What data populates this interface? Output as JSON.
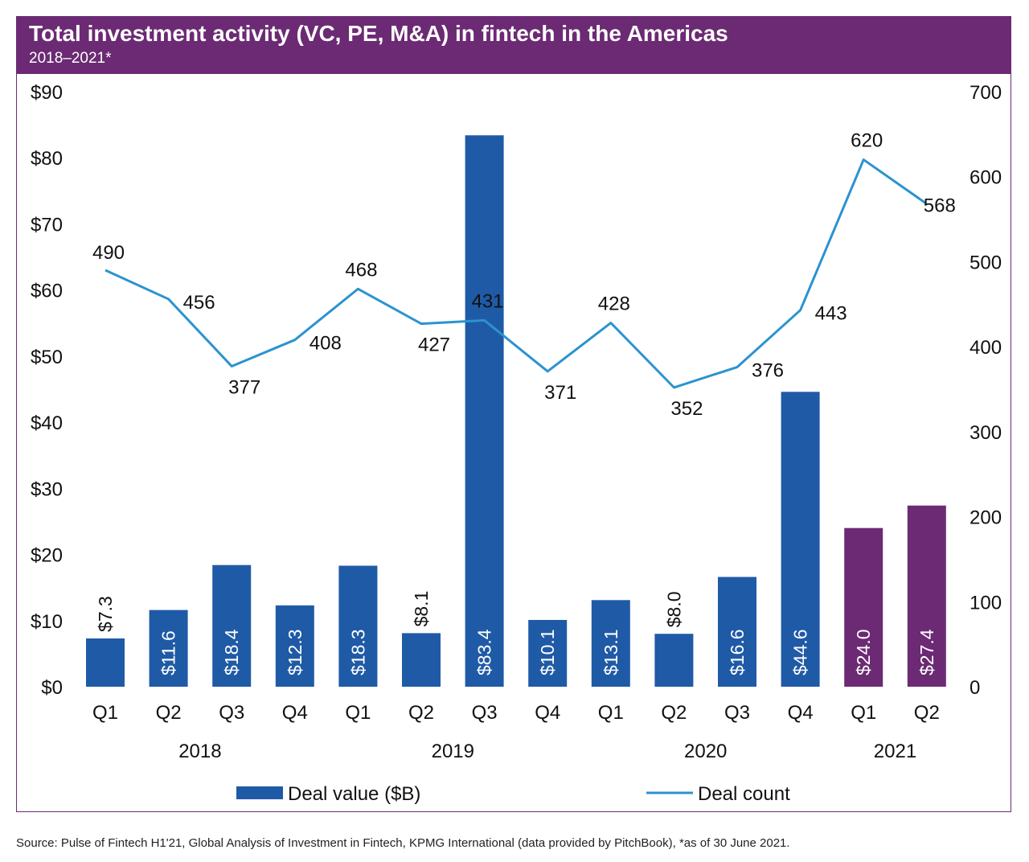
{
  "header": {
    "title": "Total investment activity (VC, PE, M&A) in fintech in the Americas",
    "subtitle": "2018–2021*"
  },
  "footer": {
    "source": "Source: Pulse of Fintech H1'21, Global Analysis of Investment in Fintech, KPMG International (data provided by PitchBook), *as of 30 June 2021."
  },
  "chart_data": {
    "type": "bar",
    "categories": [
      "Q1",
      "Q2",
      "Q3",
      "Q4",
      "Q1",
      "Q2",
      "Q3",
      "Q4",
      "Q1",
      "Q2",
      "Q3",
      "Q4",
      "Q1",
      "Q2"
    ],
    "years": [
      {
        "label": "2018",
        "quarters": [
          0,
          3
        ]
      },
      {
        "label": "2019",
        "quarters": [
          4,
          7
        ]
      },
      {
        "label": "2020",
        "quarters": [
          8,
          11
        ]
      },
      {
        "label": "2021",
        "quarters": [
          12,
          13
        ]
      }
    ],
    "series": [
      {
        "name": "Deal value ($B)",
        "type": "bar",
        "axis": "left",
        "values": [
          7.3,
          11.6,
          18.4,
          12.3,
          18.3,
          8.1,
          83.4,
          10.1,
          13.1,
          8.0,
          16.6,
          44.6,
          24.0,
          27.4
        ],
        "labels": [
          "$7.3",
          "$11.6",
          "$18.4",
          "$12.3",
          "$18.3",
          "$8.1",
          "$83.4",
          "$10.1",
          "$13.1",
          "$8.0",
          "$16.6",
          "$44.6",
          "$24.0",
          "$27.4"
        ],
        "label_outside": [
          true,
          false,
          false,
          false,
          false,
          true,
          false,
          false,
          false,
          true,
          false,
          false,
          false,
          false
        ],
        "colors": [
          "#1f5aa6",
          "#1f5aa6",
          "#1f5aa6",
          "#1f5aa6",
          "#1f5aa6",
          "#1f5aa6",
          "#1f5aa6",
          "#1f5aa6",
          "#1f5aa6",
          "#1f5aa6",
          "#1f5aa6",
          "#1f5aa6",
          "#6b2a73",
          "#6b2a73"
        ]
      },
      {
        "name": "Deal count",
        "type": "line",
        "axis": "right",
        "color": "#2b93d0",
        "values": [
          490,
          456,
          377,
          408,
          468,
          427,
          431,
          371,
          428,
          352,
          376,
          443,
          620,
          568
        ]
      }
    ],
    "y_left": {
      "ylim": [
        0,
        90
      ],
      "ticks": [
        "$0",
        "$10",
        "$20",
        "$30",
        "$40",
        "$50",
        "$60",
        "$70",
        "$80",
        "$90"
      ]
    },
    "y_right": {
      "ylim": [
        0,
        700
      ],
      "ticks": [
        "0",
        "100",
        "200",
        "300",
        "400",
        "500",
        "600",
        "700"
      ]
    },
    "legend": {
      "position": "bottom"
    },
    "grid": false
  }
}
